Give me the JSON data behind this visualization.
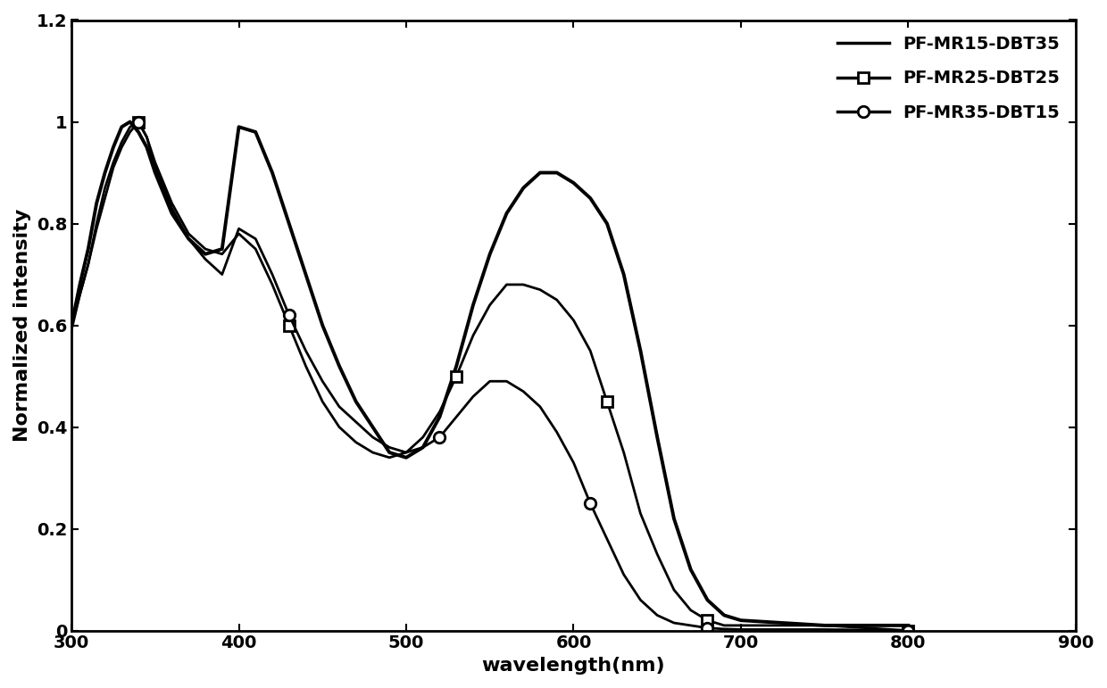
{
  "title": "",
  "xlabel": "wavelength(nm)",
  "ylabel": "Normalized intensity",
  "xlim": [
    300,
    900
  ],
  "ylim": [
    0,
    1.2
  ],
  "xticks": [
    300,
    400,
    500,
    600,
    700,
    800,
    900
  ],
  "yticks": [
    0,
    0.2,
    0.4,
    0.6,
    0.8,
    1.0,
    1.2
  ],
  "series": [
    {
      "label": "PF-MR15-DBT35",
      "color": "#000000",
      "linewidth": 2.8,
      "marker": null,
      "markevery_indices": null,
      "markersize": 10,
      "x": [
        300,
        305,
        310,
        315,
        320,
        325,
        330,
        335,
        340,
        345,
        350,
        360,
        370,
        380,
        390,
        400,
        410,
        420,
        430,
        440,
        450,
        460,
        470,
        480,
        490,
        500,
        510,
        520,
        530,
        540,
        550,
        560,
        570,
        580,
        590,
        600,
        610,
        620,
        630,
        640,
        650,
        660,
        670,
        680,
        690,
        700,
        750,
        800
      ],
      "y": [
        0.6,
        0.68,
        0.75,
        0.84,
        0.9,
        0.95,
        0.99,
        1.0,
        0.98,
        0.95,
        0.9,
        0.82,
        0.77,
        0.74,
        0.75,
        0.99,
        0.98,
        0.9,
        0.8,
        0.7,
        0.6,
        0.52,
        0.45,
        0.4,
        0.35,
        0.34,
        0.36,
        0.42,
        0.52,
        0.64,
        0.74,
        0.82,
        0.87,
        0.9,
        0.9,
        0.88,
        0.85,
        0.8,
        0.7,
        0.55,
        0.38,
        0.22,
        0.12,
        0.06,
        0.03,
        0.02,
        0.01,
        0.01
      ]
    },
    {
      "label": "PF-MR25-DBT25",
      "color": "#000000",
      "linewidth": 2.0,
      "marker": "s",
      "markevery_indices": [
        8,
        18,
        28,
        37,
        43,
        47
      ],
      "markersize": 9,
      "x": [
        300,
        305,
        310,
        315,
        320,
        325,
        330,
        335,
        340,
        345,
        350,
        360,
        370,
        380,
        390,
        400,
        410,
        420,
        430,
        440,
        450,
        460,
        470,
        480,
        490,
        500,
        510,
        520,
        530,
        540,
        550,
        560,
        570,
        580,
        590,
        600,
        610,
        620,
        630,
        640,
        650,
        660,
        670,
        680,
        690,
        700,
        750,
        800
      ],
      "y": [
        0.59,
        0.66,
        0.72,
        0.8,
        0.87,
        0.92,
        0.96,
        0.99,
        1.0,
        0.97,
        0.92,
        0.84,
        0.78,
        0.75,
        0.74,
        0.78,
        0.75,
        0.68,
        0.6,
        0.52,
        0.45,
        0.4,
        0.37,
        0.35,
        0.34,
        0.35,
        0.38,
        0.43,
        0.5,
        0.58,
        0.64,
        0.68,
        0.68,
        0.67,
        0.65,
        0.61,
        0.55,
        0.45,
        0.35,
        0.23,
        0.15,
        0.08,
        0.04,
        0.02,
        0.01,
        0.01,
        0.01,
        0.0
      ]
    },
    {
      "label": "PF-MR35-DBT15",
      "color": "#000000",
      "linewidth": 2.0,
      "marker": "o",
      "markevery_indices": [
        8,
        18,
        27,
        36,
        43,
        47
      ],
      "markersize": 9,
      "x": [
        300,
        305,
        310,
        315,
        320,
        325,
        330,
        335,
        340,
        345,
        350,
        360,
        370,
        380,
        390,
        400,
        410,
        420,
        430,
        440,
        450,
        460,
        470,
        480,
        490,
        500,
        510,
        520,
        530,
        540,
        550,
        560,
        570,
        580,
        590,
        600,
        610,
        620,
        630,
        640,
        650,
        660,
        670,
        680,
        690,
        700,
        750,
        800
      ],
      "y": [
        0.6,
        0.66,
        0.72,
        0.79,
        0.85,
        0.91,
        0.95,
        0.98,
        1.0,
        0.97,
        0.91,
        0.83,
        0.77,
        0.73,
        0.7,
        0.79,
        0.77,
        0.7,
        0.62,
        0.55,
        0.49,
        0.44,
        0.41,
        0.38,
        0.36,
        0.35,
        0.36,
        0.38,
        0.42,
        0.46,
        0.49,
        0.49,
        0.47,
        0.44,
        0.39,
        0.33,
        0.25,
        0.18,
        0.11,
        0.06,
        0.03,
        0.015,
        0.01,
        0.005,
        0.003,
        0.002,
        0.002,
        0.0
      ]
    }
  ],
  "background_color": "#ffffff",
  "legend_loc": "upper right",
  "legend_fontsize": 14,
  "axis_fontsize": 16,
  "tick_fontsize": 14
}
